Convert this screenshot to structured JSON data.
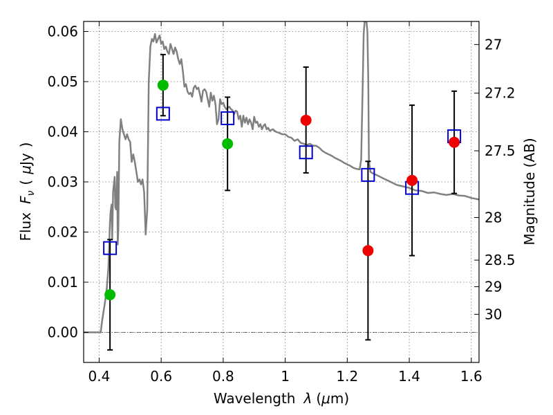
{
  "chart_data": {
    "type": "scatter",
    "title": "",
    "xlabel": {
      "text": "Wavelength",
      "symbol": "λ",
      "unit_open": "(",
      "unit_mu": "μ",
      "unit_m": "m)"
    },
    "ylabel": {
      "text": "Flux",
      "symbol": "F",
      "subscript": "ν",
      "unit_open": "(",
      "unit_mu": "μ",
      "unit_rest": "Jy",
      "unit_close": ")"
    },
    "y2label": "Magnitude (AB)",
    "xlim": [
      0.35,
      1.625
    ],
    "ylim": [
      -0.006,
      0.062
    ],
    "grid": true,
    "x_ticks": [
      {
        "value": 0.4,
        "label": "0.4"
      },
      {
        "value": 0.6,
        "label": "0.6"
      },
      {
        "value": 0.8,
        "label": "0.8"
      },
      {
        "value": 1.0,
        "label": "1"
      },
      {
        "value": 1.2,
        "label": "1.2"
      },
      {
        "value": 1.4,
        "label": "1.4"
      },
      {
        "value": 1.6,
        "label": "1.6"
      }
    ],
    "y_ticks": [
      {
        "value": 0.0,
        "label": "0.00"
      },
      {
        "value": 0.01,
        "label": "0.01"
      },
      {
        "value": 0.02,
        "label": "0.02"
      },
      {
        "value": 0.03,
        "label": "0.03"
      },
      {
        "value": 0.04,
        "label": "0.04"
      },
      {
        "value": 0.05,
        "label": "0.05"
      },
      {
        "value": 0.06,
        "label": "0.06"
      }
    ],
    "y2_ticks": [
      {
        "flux": 0.0574,
        "label": "27"
      },
      {
        "flux": 0.0477,
        "label": "27.2"
      },
      {
        "flux": 0.0362,
        "label": "27.5"
      },
      {
        "flux": 0.0229,
        "label": "28"
      },
      {
        "flux": 0.0144,
        "label": "28.5"
      },
      {
        "flux": 0.0091,
        "label": "29"
      },
      {
        "flux": 0.0036,
        "label": "30"
      }
    ],
    "colors": {
      "model": "#808080",
      "model_photometry": "#0000cc",
      "detection": "#00bb00",
      "nondetection": "#ee0000",
      "errorbar": "#000000"
    },
    "series": [
      {
        "kind": "model_spectrum",
        "points": [
          [
            0.35,
            0.0
          ],
          [
            0.4,
            0.0
          ],
          [
            0.405,
            0.0
          ],
          [
            0.41,
            0.0025
          ],
          [
            0.415,
            0.0045
          ],
          [
            0.42,
            0.0065
          ],
          [
            0.425,
            0.009
          ],
          [
            0.43,
            0.013
          ],
          [
            0.435,
            0.022
          ],
          [
            0.437,
            0.024
          ],
          [
            0.44,
            0.0255
          ],
          [
            0.442,
            0.0185
          ],
          [
            0.445,
            0.028
          ],
          [
            0.45,
            0.031
          ],
          [
            0.452,
            0.025
          ],
          [
            0.455,
            0.0245
          ],
          [
            0.458,
            0.032
          ],
          [
            0.46,
            0.0175
          ],
          [
            0.462,
            0.0205
          ],
          [
            0.465,
            0.038
          ],
          [
            0.47,
            0.0425
          ],
          [
            0.475,
            0.0405
          ],
          [
            0.48,
            0.0395
          ],
          [
            0.485,
            0.0385
          ],
          [
            0.49,
            0.0395
          ],
          [
            0.495,
            0.0385
          ],
          [
            0.5,
            0.038
          ],
          [
            0.505,
            0.034
          ],
          [
            0.51,
            0.0355
          ],
          [
            0.515,
            0.034
          ],
          [
            0.52,
            0.032
          ],
          [
            0.525,
            0.03
          ],
          [
            0.53,
            0.0305
          ],
          [
            0.535,
            0.0295
          ],
          [
            0.54,
            0.0305
          ],
          [
            0.545,
            0.028
          ],
          [
            0.55,
            0.0195
          ],
          [
            0.555,
            0.0245
          ],
          [
            0.56,
            0.05
          ],
          [
            0.565,
            0.057
          ],
          [
            0.57,
            0.0585
          ],
          [
            0.575,
            0.058
          ],
          [
            0.58,
            0.0595
          ],
          [
            0.585,
            0.0578
          ],
          [
            0.59,
            0.0585
          ],
          [
            0.595,
            0.0592
          ],
          [
            0.6,
            0.0575
          ],
          [
            0.605,
            0.058
          ],
          [
            0.61,
            0.0565
          ],
          [
            0.615,
            0.057
          ],
          [
            0.62,
            0.056
          ],
          [
            0.625,
            0.0555
          ],
          [
            0.63,
            0.0575
          ],
          [
            0.635,
            0.0565
          ],
          [
            0.64,
            0.0555
          ],
          [
            0.645,
            0.0568
          ],
          [
            0.65,
            0.056
          ],
          [
            0.655,
            0.0545
          ],
          [
            0.66,
            0.0535
          ],
          [
            0.665,
            0.0545
          ],
          [
            0.67,
            0.052
          ],
          [
            0.675,
            0.049
          ],
          [
            0.68,
            0.0495
          ],
          [
            0.685,
            0.048
          ],
          [
            0.69,
            0.0475
          ],
          [
            0.695,
            0.0478
          ],
          [
            0.7,
            0.047
          ],
          [
            0.705,
            0.0488
          ],
          [
            0.71,
            0.0492
          ],
          [
            0.715,
            0.0485
          ],
          [
            0.72,
            0.0488
          ],
          [
            0.725,
            0.0475
          ],
          [
            0.73,
            0.046
          ],
          [
            0.735,
            0.0482
          ],
          [
            0.74,
            0.0485
          ],
          [
            0.745,
            0.048
          ],
          [
            0.75,
            0.0465
          ],
          [
            0.755,
            0.045
          ],
          [
            0.76,
            0.0478
          ],
          [
            0.765,
            0.0462
          ],
          [
            0.77,
            0.0472
          ],
          [
            0.775,
            0.0455
          ],
          [
            0.78,
            0.0415
          ],
          [
            0.785,
            0.0425
          ],
          [
            0.79,
            0.0465
          ],
          [
            0.795,
            0.0455
          ],
          [
            0.8,
            0.0458
          ],
          [
            0.805,
            0.045
          ],
          [
            0.81,
            0.0445
          ],
          [
            0.815,
            0.0448
          ],
          [
            0.82,
            0.045
          ],
          [
            0.825,
            0.0445
          ],
          [
            0.83,
            0.0443
          ],
          [
            0.835,
            0.0435
          ],
          [
            0.84,
            0.0442
          ],
          [
            0.845,
            0.044
          ],
          [
            0.85,
            0.0425
          ],
          [
            0.855,
            0.0432
          ],
          [
            0.86,
            0.041
          ],
          [
            0.865,
            0.0432
          ],
          [
            0.87,
            0.0418
          ],
          [
            0.875,
            0.0428
          ],
          [
            0.88,
            0.0415
          ],
          [
            0.885,
            0.0425
          ],
          [
            0.89,
            0.0418
          ],
          [
            0.895,
            0.0405
          ],
          [
            0.9,
            0.043
          ],
          [
            0.905,
            0.0418
          ],
          [
            0.91,
            0.042
          ],
          [
            0.915,
            0.041
          ],
          [
            0.92,
            0.0415
          ],
          [
            0.925,
            0.0405
          ],
          [
            0.93,
            0.0412
          ],
          [
            0.935,
            0.0415
          ],
          [
            0.94,
            0.0405
          ],
          [
            0.945,
            0.0408
          ],
          [
            0.95,
            0.0402
          ],
          [
            0.96,
            0.0405
          ],
          [
            0.97,
            0.04
          ],
          [
            0.98,
            0.0398
          ],
          [
            0.99,
            0.0395
          ],
          [
            1.0,
            0.0395
          ],
          [
            1.01,
            0.039
          ],
          [
            1.02,
            0.0388
          ],
          [
            1.03,
            0.0382
          ],
          [
            1.04,
            0.0385
          ],
          [
            1.05,
            0.0378
          ],
          [
            1.06,
            0.0376
          ],
          [
            1.07,
            0.0374
          ],
          [
            1.08,
            0.0376
          ],
          [
            1.09,
            0.0372
          ],
          [
            1.1,
            0.0372
          ],
          [
            1.11,
            0.0368
          ],
          [
            1.12,
            0.0362
          ],
          [
            1.13,
            0.0358
          ],
          [
            1.14,
            0.0355
          ],
          [
            1.15,
            0.0352
          ],
          [
            1.16,
            0.0348
          ],
          [
            1.17,
            0.0345
          ],
          [
            1.18,
            0.0342
          ],
          [
            1.19,
            0.0338
          ],
          [
            1.2,
            0.0335
          ],
          [
            1.21,
            0.0332
          ],
          [
            1.22,
            0.0328
          ],
          [
            1.23,
            0.0326
          ],
          [
            1.24,
            0.0325
          ],
          [
            1.245,
            0.0345
          ],
          [
            1.25,
            0.05
          ],
          [
            1.253,
            0.0595
          ],
          [
            1.256,
            0.062
          ],
          [
            1.262,
            0.062
          ],
          [
            1.265,
            0.06
          ],
          [
            1.268,
            0.05
          ],
          [
            1.27,
            0.034
          ],
          [
            1.275,
            0.032
          ],
          [
            1.28,
            0.0318
          ],
          [
            1.3,
            0.0312
          ],
          [
            1.32,
            0.0306
          ],
          [
            1.34,
            0.03
          ],
          [
            1.36,
            0.0294
          ],
          [
            1.38,
            0.0291
          ],
          [
            1.4,
            0.0288
          ],
          [
            1.42,
            0.0283
          ],
          [
            1.44,
            0.0282
          ],
          [
            1.46,
            0.0278
          ],
          [
            1.48,
            0.0279
          ],
          [
            1.5,
            0.0276
          ],
          [
            1.52,
            0.0274
          ],
          [
            1.54,
            0.0276
          ],
          [
            1.56,
            0.0273
          ],
          [
            1.58,
            0.0272
          ],
          [
            1.6,
            0.0268
          ],
          [
            1.625,
            0.0265
          ]
        ]
      },
      {
        "kind": "model_photometry",
        "points": [
          {
            "x": 0.435,
            "y": 0.0168
          },
          {
            "x": 0.606,
            "y": 0.0436
          },
          {
            "x": 0.814,
            "y": 0.0427
          },
          {
            "x": 1.067,
            "y": 0.0359
          },
          {
            "x": 1.267,
            "y": 0.0314
          },
          {
            "x": 1.409,
            "y": 0.0288
          },
          {
            "x": 1.545,
            "y": 0.0391
          }
        ]
      },
      {
        "kind": "observed_detection",
        "points": [
          {
            "x": 0.435,
            "y": 0.0075,
            "ylo": -0.0035,
            "yhi": 0.0185
          },
          {
            "x": 0.606,
            "y": 0.0493,
            "ylo": 0.0432,
            "yhi": 0.0554
          },
          {
            "x": 0.814,
            "y": 0.0376,
            "ylo": 0.0283,
            "yhi": 0.0469
          }
        ]
      },
      {
        "kind": "observed_nondetection",
        "points": [
          {
            "x": 1.067,
            "y": 0.0423,
            "ylo": 0.0318,
            "yhi": 0.0529
          },
          {
            "x": 1.267,
            "y": 0.0163,
            "ylo": -0.0015,
            "yhi": 0.0341
          },
          {
            "x": 1.409,
            "y": 0.0303,
            "ylo": 0.0153,
            "yhi": 0.0453
          },
          {
            "x": 1.545,
            "y": 0.0379,
            "ylo": 0.0277,
            "yhi": 0.0481
          }
        ]
      }
    ]
  }
}
